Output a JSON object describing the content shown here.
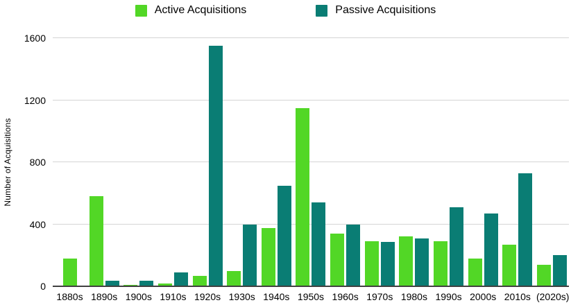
{
  "legend": {
    "items": [
      {
        "label": "Active Acquisitions",
        "color": "#52d726"
      },
      {
        "label": "Passive Acquisitions",
        "color": "#0a7d74"
      }
    ]
  },
  "y_axis": {
    "title": "Number of Acquisitions",
    "ticks": [
      "0",
      "400",
      "800",
      "1200",
      "1600"
    ]
  },
  "colors": {
    "active": "#52d726",
    "passive": "#0a7d74",
    "gridline": "#d5d5d5",
    "axis_line": "#404040",
    "text": "#000000"
  },
  "chart_data": {
    "type": "bar",
    "title": "",
    "xlabel": "",
    "ylabel": "Number of Acquisitions",
    "ylim": [
      0,
      1600
    ],
    "grid": true,
    "legend_position": "top",
    "categories": [
      "1880s",
      "1890s",
      "1900s",
      "1910s",
      "1920s",
      "1930s",
      "1940s",
      "1950s",
      "1960s",
      "1970s",
      "1980s",
      "1990s",
      "2000s",
      "2010s",
      "(2020s)"
    ],
    "series": [
      {
        "name": "Active Acquisitions",
        "color": "#52d726",
        "values": [
          180,
          580,
          10,
          20,
          65,
          100,
          375,
          1150,
          340,
          290,
          320,
          290,
          180,
          270,
          140
        ]
      },
      {
        "name": "Passive Acquisitions",
        "color": "#0a7d74",
        "values": [
          0,
          35,
          35,
          90,
          1550,
          400,
          650,
          540,
          400,
          285,
          310,
          510,
          470,
          730,
          200
        ]
      }
    ]
  }
}
